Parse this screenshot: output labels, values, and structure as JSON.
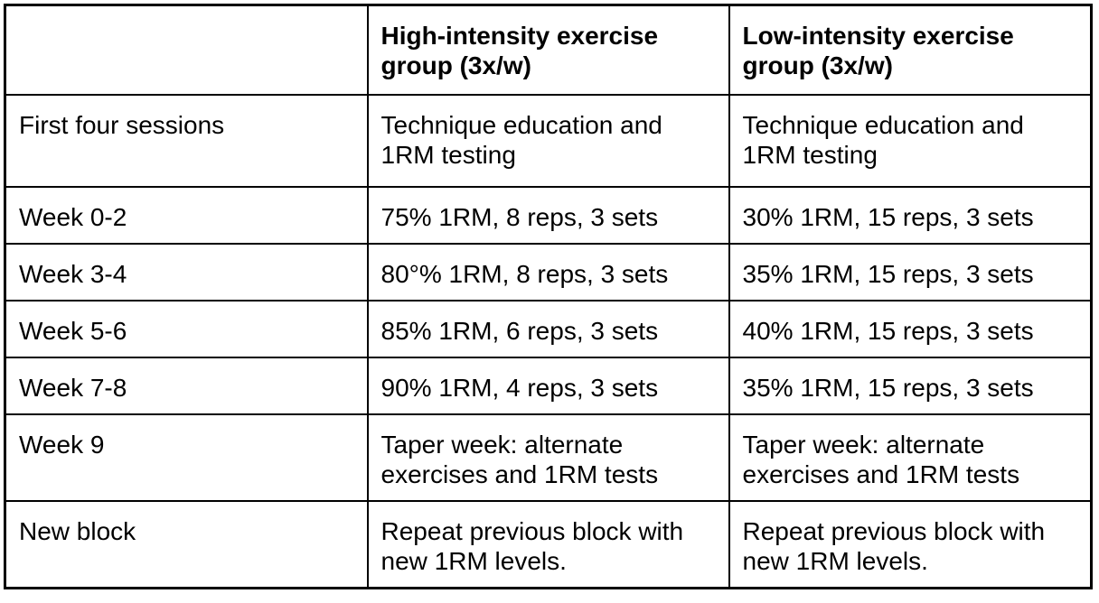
{
  "table": {
    "title_semantic": "training-protocol-table",
    "colors": {
      "border": "#000000",
      "text": "#000000",
      "background": "#ffffff"
    },
    "columns": [
      {
        "label": ""
      },
      {
        "label": "High-intensity exercise group (3x/w)"
      },
      {
        "label": "Low-intensity exercise group (3x/w)"
      }
    ],
    "rows": [
      {
        "label": "First four sessions",
        "high": "Technique education and 1RM testing",
        "low": "Technique education and 1RM testing"
      },
      {
        "label": "Week 0-2",
        "high": "75% 1RM, 8 reps, 3 sets",
        "low": "30% 1RM, 15 reps, 3 sets"
      },
      {
        "label": "Week 3-4",
        "high": "80°% 1RM, 8 reps, 3 sets",
        "low": "35% 1RM, 15 reps, 3 sets"
      },
      {
        "label": "Week 5-6",
        "high": "85% 1RM, 6 reps, 3 sets",
        "low": "40% 1RM, 15 reps, 3 sets"
      },
      {
        "label": "Week 7-8",
        "high": "90% 1RM, 4 reps, 3 sets",
        "low": "35% 1RM, 15 reps, 3 sets"
      },
      {
        "label": "Week 9",
        "high": "Taper week: alternate exercises and 1RM tests",
        "low": "Taper week: alternate exercises and 1RM tests"
      },
      {
        "label": "New block",
        "high": "Repeat previous block with new 1RM levels.",
        "low": "Repeat previous block with new 1RM levels."
      }
    ]
  }
}
